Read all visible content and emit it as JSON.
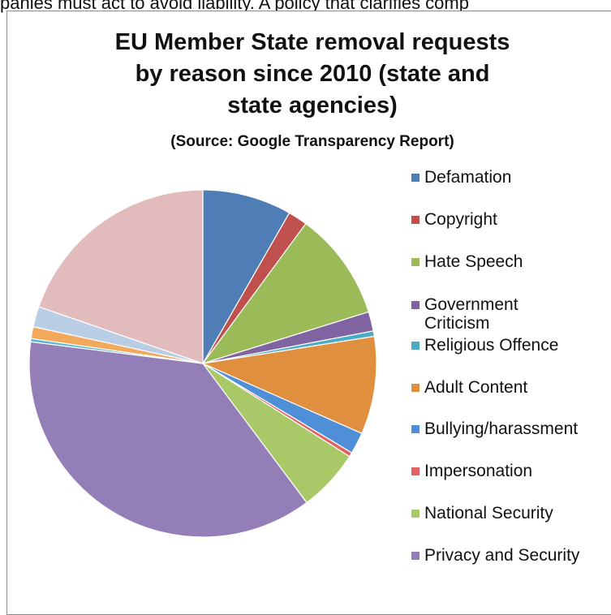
{
  "page": {
    "top_text": "panies must act to avoid liability. A policy that clarifies comp"
  },
  "chart_data": {
    "type": "pie",
    "title_lines": [
      "EU Member State removal requests",
      "by reason since 2010 (state and",
      "state agencies)"
    ],
    "subtitle": "(Source: Google Transparency Report)",
    "legend_position": "right",
    "slices": [
      {
        "label": "Defamation",
        "value": 8.3,
        "color": "#4f7db5"
      },
      {
        "label": "Copyright",
        "value": 1.8,
        "color": "#c0504d"
      },
      {
        "label": "Hate Speech",
        "value": 10.1,
        "color": "#9bbb59"
      },
      {
        "label": "Government Criticism",
        "value": 1.8,
        "color": "#8064a2"
      },
      {
        "label": "Religious Offence",
        "value": 0.5,
        "color": "#4bacc6"
      },
      {
        "label": "Adult Content",
        "value": 9.1,
        "color": "#e08f3f"
      },
      {
        "label": "Bullying/harassment",
        "value": 2.0,
        "color": "#4f8fd8"
      },
      {
        "label": "Impersonation",
        "value": 0.4,
        "color": "#e2635f"
      },
      {
        "label": "National Security",
        "value": 5.8,
        "color": "#a9c968"
      },
      {
        "label": "Privacy and Security",
        "value": 37.2,
        "color": "#937eb8"
      },
      {
        "label": "",
        "value": 0.3,
        "color": "#55b7cf"
      },
      {
        "label": "",
        "value": 1.1,
        "color": "#f2a95c"
      },
      {
        "label": "",
        "value": 1.9,
        "color": "#b9cde4"
      },
      {
        "label": "",
        "value": 19.7,
        "color": "#e2bcbc"
      }
    ]
  }
}
